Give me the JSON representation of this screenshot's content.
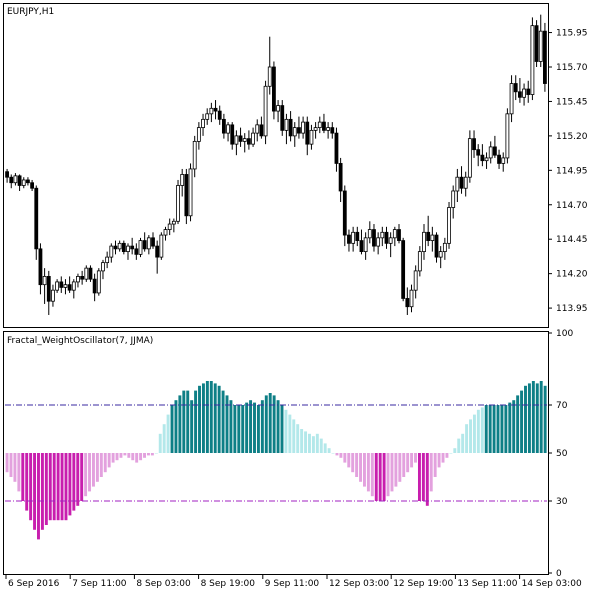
{
  "main_window": {
    "title": "EURJPY,H1",
    "price_ticks": [
      "115.95",
      "115.70",
      "115.45",
      "115.20",
      "114.95",
      "114.70",
      "114.45",
      "114.20",
      "113.95"
    ]
  },
  "indicator_window": {
    "title": "Fractal_WeightOscillator(7, JJMA)",
    "level_ticks": [
      "100",
      "70",
      "50",
      "30",
      "0"
    ]
  },
  "time_axis": {
    "labels": [
      "6 Sep 2016",
      "7 Sep 11:00",
      "8 Sep 03:00",
      "8 Sep 19:00",
      "9 Sep 11:00",
      "12 Sep 03:00",
      "12 Sep 19:00",
      "13 Sep 11:00",
      "14 Sep 03:00"
    ]
  },
  "colors": {
    "bull_candle": "#ffffff",
    "bear_candle": "#000000",
    "up_strong": "#0e7f86",
    "up_weak": "#b3e8ea",
    "down_strong": "#c81eae",
    "down_weak": "#e3a1de",
    "level_line": "#3a2aa0",
    "level_line_low": "#a020c0"
  },
  "chart_data": [
    {
      "type": "candlestick",
      "title": "EURJPY,H1",
      "ylim": [
        113.82,
        116.15
      ],
      "candles": [
        [
          114.94,
          114.96,
          114.86,
          114.9
        ],
        [
          114.9,
          114.92,
          114.82,
          114.86
        ],
        [
          114.86,
          114.93,
          114.84,
          114.91
        ],
        [
          114.91,
          114.92,
          114.8,
          114.84
        ],
        [
          114.84,
          114.9,
          114.82,
          114.88
        ],
        [
          114.88,
          114.9,
          114.84,
          114.86
        ],
        [
          114.86,
          114.88,
          114.8,
          114.82
        ],
        [
          114.82,
          114.84,
          114.3,
          114.38
        ],
        [
          114.38,
          114.42,
          114.05,
          114.12
        ],
        [
          114.12,
          114.24,
          113.98,
          114.18
        ],
        [
          114.18,
          114.22,
          113.9,
          114.0
        ],
        [
          114.0,
          114.12,
          113.96,
          114.08
        ],
        [
          114.08,
          114.16,
          114.06,
          114.14
        ],
        [
          114.14,
          114.18,
          114.06,
          114.1
        ],
        [
          114.1,
          114.16,
          114.05,
          114.12
        ],
        [
          114.12,
          114.18,
          114.06,
          114.08
        ],
        [
          114.08,
          114.16,
          114.02,
          114.14
        ],
        [
          114.14,
          114.2,
          114.1,
          114.18
        ],
        [
          114.18,
          114.22,
          114.12,
          114.16
        ],
        [
          114.16,
          114.26,
          114.14,
          114.24
        ],
        [
          114.24,
          114.26,
          114.14,
          114.16
        ],
        [
          114.16,
          114.2,
          114.0,
          114.06
        ],
        [
          114.06,
          114.24,
          114.04,
          114.22
        ],
        [
          114.22,
          114.3,
          114.16,
          114.28
        ],
        [
          114.28,
          114.36,
          114.24,
          114.32
        ],
        [
          114.32,
          114.42,
          114.28,
          114.4
        ],
        [
          114.4,
          114.44,
          114.34,
          114.38
        ],
        [
          114.38,
          114.44,
          114.36,
          114.42
        ],
        [
          114.42,
          114.44,
          114.34,
          114.36
        ],
        [
          114.36,
          114.42,
          114.3,
          114.4
        ],
        [
          114.4,
          114.46,
          114.34,
          114.38
        ],
        [
          114.38,
          114.42,
          114.3,
          114.34
        ],
        [
          114.34,
          114.46,
          114.32,
          114.44
        ],
        [
          114.44,
          114.5,
          114.36,
          114.38
        ],
        [
          114.38,
          114.48,
          114.34,
          114.46
        ],
        [
          114.46,
          114.5,
          114.38,
          114.4
        ],
        [
          114.4,
          114.44,
          114.2,
          114.32
        ],
        [
          114.32,
          114.5,
          114.3,
          114.48
        ],
        [
          114.48,
          114.54,
          114.44,
          114.52
        ],
        [
          114.52,
          114.6,
          114.48,
          114.56
        ],
        [
          114.56,
          114.6,
          114.5,
          114.58
        ],
        [
          114.58,
          114.88,
          114.56,
          114.84
        ],
        [
          114.84,
          114.96,
          114.76,
          114.92
        ],
        [
          114.92,
          114.96,
          114.56,
          114.62
        ],
        [
          114.62,
          115.0,
          114.58,
          114.96
        ],
        [
          114.96,
          115.2,
          114.9,
          115.16
        ],
        [
          115.16,
          115.3,
          115.1,
          115.26
        ],
        [
          115.26,
          115.36,
          115.2,
          115.32
        ],
        [
          115.32,
          115.4,
          115.28,
          115.36
        ],
        [
          115.36,
          115.44,
          115.3,
          115.4
        ],
        [
          115.4,
          115.46,
          115.32,
          115.38
        ],
        [
          115.38,
          115.42,
          115.28,
          115.32
        ],
        [
          115.32,
          115.36,
          115.18,
          115.22
        ],
        [
          115.22,
          115.3,
          115.16,
          115.28
        ],
        [
          115.28,
          115.3,
          115.1,
          115.14
        ],
        [
          115.14,
          115.24,
          115.06,
          115.2
        ],
        [
          115.2,
          115.26,
          115.12,
          115.16
        ],
        [
          115.16,
          115.22,
          115.08,
          115.18
        ],
        [
          115.18,
          115.24,
          115.1,
          115.14
        ],
        [
          115.14,
          115.26,
          115.12,
          115.22
        ],
        [
          115.22,
          115.32,
          115.16,
          115.28
        ],
        [
          115.28,
          115.34,
          115.18,
          115.2
        ],
        [
          115.2,
          115.6,
          115.14,
          115.56
        ],
        [
          115.56,
          115.92,
          115.5,
          115.7
        ],
        [
          115.7,
          115.74,
          115.32,
          115.38
        ],
        [
          115.38,
          115.46,
          115.3,
          115.42
        ],
        [
          115.42,
          115.46,
          115.2,
          115.24
        ],
        [
          115.24,
          115.36,
          115.14,
          115.32
        ],
        [
          115.32,
          115.38,
          115.16,
          115.2
        ],
        [
          115.2,
          115.3,
          115.12,
          115.26
        ],
        [
          115.26,
          115.34,
          115.18,
          115.22
        ],
        [
          115.22,
          115.34,
          115.18,
          115.3
        ],
        [
          115.3,
          115.34,
          115.06,
          115.14
        ],
        [
          115.14,
          115.28,
          115.1,
          115.24
        ],
        [
          115.24,
          115.3,
          115.18,
          115.26
        ],
        [
          115.26,
          115.34,
          115.22,
          115.3
        ],
        [
          115.3,
          115.36,
          115.22,
          115.24
        ],
        [
          115.24,
          115.3,
          115.18,
          115.26
        ],
        [
          115.26,
          115.3,
          115.18,
          115.22
        ],
        [
          115.22,
          115.26,
          114.94,
          115.0
        ],
        [
          115.0,
          115.04,
          114.72,
          114.8
        ],
        [
          114.8,
          114.84,
          114.4,
          114.48
        ],
        [
          114.48,
          114.52,
          114.36,
          114.42
        ],
        [
          114.42,
          114.54,
          114.36,
          114.5
        ],
        [
          114.5,
          114.54,
          114.4,
          114.44
        ],
        [
          114.44,
          114.52,
          114.34,
          114.36
        ],
        [
          114.36,
          114.5,
          114.3,
          114.46
        ],
        [
          114.46,
          114.58,
          114.42,
          114.52
        ],
        [
          114.52,
          114.56,
          114.36,
          114.4
        ],
        [
          114.4,
          114.5,
          114.34,
          114.46
        ],
        [
          114.46,
          114.54,
          114.4,
          114.5
        ],
        [
          114.5,
          114.54,
          114.38,
          114.42
        ],
        [
          114.42,
          114.5,
          114.32,
          114.46
        ],
        [
          114.46,
          114.54,
          114.4,
          114.52
        ],
        [
          114.52,
          114.56,
          114.42,
          114.44
        ],
        [
          114.44,
          114.46,
          114.0,
          114.02
        ],
        [
          114.02,
          114.1,
          113.9,
          113.96
        ],
        [
          113.96,
          114.12,
          113.92,
          114.08
        ],
        [
          114.08,
          114.26,
          114.02,
          114.22
        ],
        [
          114.22,
          114.4,
          114.18,
          114.36
        ],
        [
          114.36,
          114.56,
          114.3,
          114.5
        ],
        [
          114.5,
          114.62,
          114.4,
          114.44
        ],
        [
          114.44,
          114.54,
          114.36,
          114.48
        ],
        [
          114.48,
          114.5,
          114.28,
          114.32
        ],
        [
          114.32,
          114.4,
          114.24,
          114.36
        ],
        [
          114.36,
          114.46,
          114.3,
          114.42
        ],
        [
          114.42,
          114.72,
          114.38,
          114.68
        ],
        [
          114.68,
          114.84,
          114.6,
          114.8
        ],
        [
          114.8,
          114.96,
          114.72,
          114.9
        ],
        [
          114.9,
          114.98,
          114.78,
          114.82
        ],
        [
          114.82,
          114.94,
          114.76,
          114.9
        ],
        [
          114.9,
          115.24,
          114.86,
          115.18
        ],
        [
          115.18,
          115.24,
          115.04,
          115.1
        ],
        [
          115.1,
          115.14,
          114.98,
          115.06
        ],
        [
          115.06,
          115.14,
          114.98,
          115.02
        ],
        [
          115.02,
          115.08,
          114.96,
          115.04
        ],
        [
          115.04,
          115.16,
          115.0,
          115.12
        ],
        [
          115.12,
          115.2,
          115.04,
          115.06
        ],
        [
          115.06,
          115.1,
          114.96,
          115.0
        ],
        [
          115.0,
          115.08,
          114.94,
          115.04
        ],
        [
          115.04,
          115.4,
          115.0,
          115.36
        ],
        [
          115.36,
          115.64,
          115.3,
          115.58
        ],
        [
          115.58,
          115.64,
          115.46,
          115.52
        ],
        [
          115.52,
          115.62,
          115.44,
          115.48
        ],
        [
          115.48,
          115.58,
          115.42,
          115.54
        ],
        [
          115.54,
          115.6,
          115.44,
          115.5
        ],
        [
          115.5,
          116.06,
          115.46,
          116.0
        ],
        [
          116.0,
          116.04,
          115.7,
          115.74
        ],
        [
          115.74,
          116.08,
          115.7,
          115.96
        ],
        [
          115.96,
          116.02,
          115.52,
          115.58
        ]
      ]
    },
    {
      "type": "bar",
      "title": "Fractal_WeightOscillator(7, JJMA)",
      "ylim": [
        0,
        100
      ],
      "levels": [
        70,
        50,
        30
      ],
      "values": [
        42,
        40,
        38,
        34,
        30,
        26,
        22,
        18,
        14,
        18,
        20,
        22,
        22,
        22,
        22,
        22,
        24,
        26,
        28,
        30,
        32,
        34,
        36,
        38,
        40,
        42,
        44,
        46,
        47,
        48,
        49,
        48,
        47,
        46,
        47,
        48,
        49,
        49,
        50,
        58,
        62,
        66,
        70,
        72,
        74,
        76,
        76,
        72,
        76,
        78,
        79,
        80,
        80,
        79,
        78,
        76,
        74,
        72,
        70,
        70,
        70,
        71,
        72,
        71,
        70,
        72,
        74,
        75,
        74,
        72,
        70,
        68,
        66,
        64,
        62,
        60,
        59,
        58,
        57,
        58,
        56,
        54,
        52,
        50,
        49,
        48,
        46,
        44,
        42,
        40,
        38,
        36,
        34,
        32,
        30,
        30,
        30,
        32,
        34,
        36,
        38,
        40,
        42,
        44,
        46,
        30,
        30,
        28,
        34,
        40,
        44,
        46,
        48,
        50,
        52,
        56,
        58,
        62,
        64,
        66,
        68,
        69,
        70,
        70,
        70,
        70,
        70,
        70,
        71,
        72,
        74,
        76,
        78,
        79,
        80,
        79,
        80,
        78
      ]
    }
  ]
}
